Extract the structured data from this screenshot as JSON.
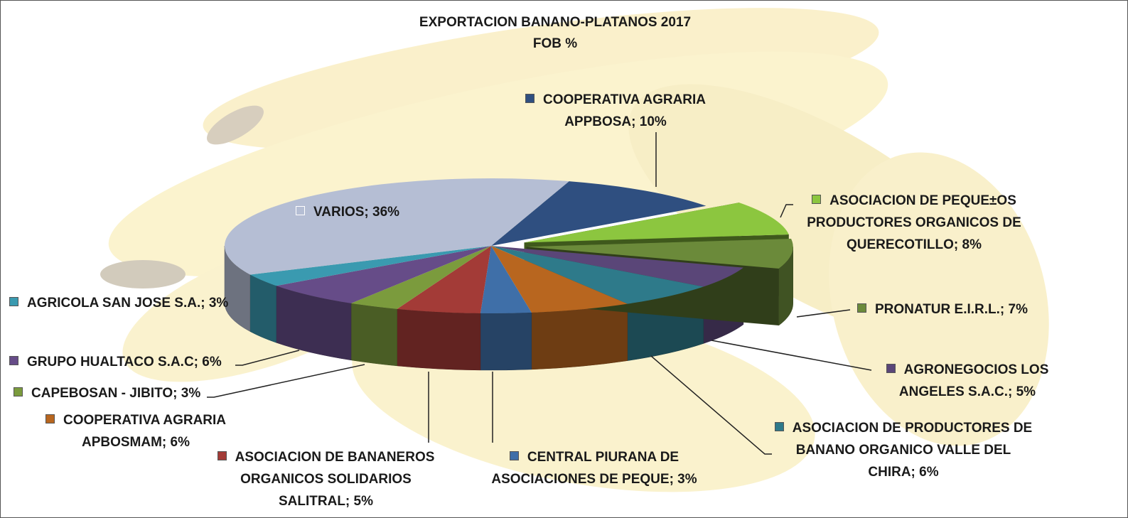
{
  "chart_data": {
    "type": "pie",
    "title": "EXPORTACION  BANANO-PLATANOS 2017",
    "subtitle": "FOB  %",
    "values": [
      10,
      8,
      7,
      5,
      6,
      6,
      3,
      5,
      3,
      6,
      3,
      36
    ],
    "value_labels": [
      "COOPERATIVA AGRARIA APPBOSA; 10%",
      "ASOCIACION DE PEQUE±OS PRODUCTORES ORGANICOS DE QUERECOTILLO; 8%",
      "PRONATUR E.I.R.L.; 7%",
      "AGRONEGOCIOS LOS ANGELES S.A.C.; 5%",
      "ASOCIACION DE PRODUCTORES DE BANANO ORGANICO VALLE DEL CHIRA; 6%",
      "COOPERATIVA AGRARIA APBOSMAM; 6%",
      "CENTRAL PIURANA DE ASOCIACIONES DE PEQUE; 3%",
      "ASOCIACION DE BANANEROS ORGANICOS SOLIDARIOS SALITRAL; 5%",
      "CAPEBOSAN - JIBITO; 3%",
      "GRUPO HUALTACO S.A.C; 6%",
      "AGRICOLA SAN JOSE S.A.; 3%",
      "VARIOS; 36%"
    ],
    "colors": [
      "#2f4f80",
      "#8cc63f",
      "#6b8a3a",
      "#5a4678",
      "#2e7a8a",
      "#b8661f",
      "#3f6fa8",
      "#a33b37",
      "#7b9b3d",
      "#664c88",
      "#3a9ab0",
      "#b5bed4"
    ]
  }
}
